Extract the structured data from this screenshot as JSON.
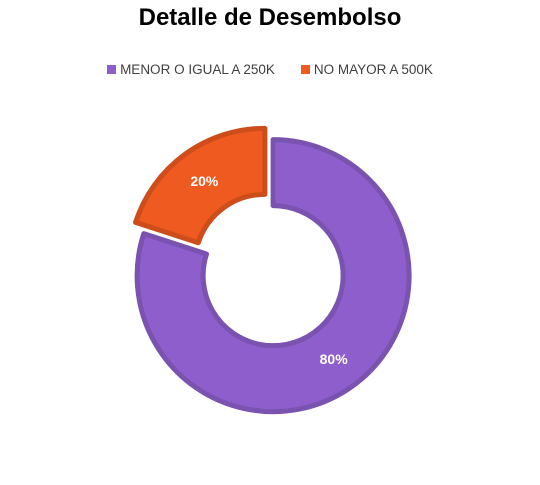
{
  "chart_data": {
    "type": "pie",
    "variant": "doughnut",
    "title": "Detalle de Desembolso",
    "legend_position": "top",
    "series": [
      {
        "name": "MENOR O IGUAL A 250K",
        "value": 80,
        "label": "80%",
        "color": "#8e5fcc"
      },
      {
        "name": "NO MAYOR A 500K",
        "value": 20,
        "label": "20%",
        "color": "#ee5a1f"
      }
    ]
  }
}
